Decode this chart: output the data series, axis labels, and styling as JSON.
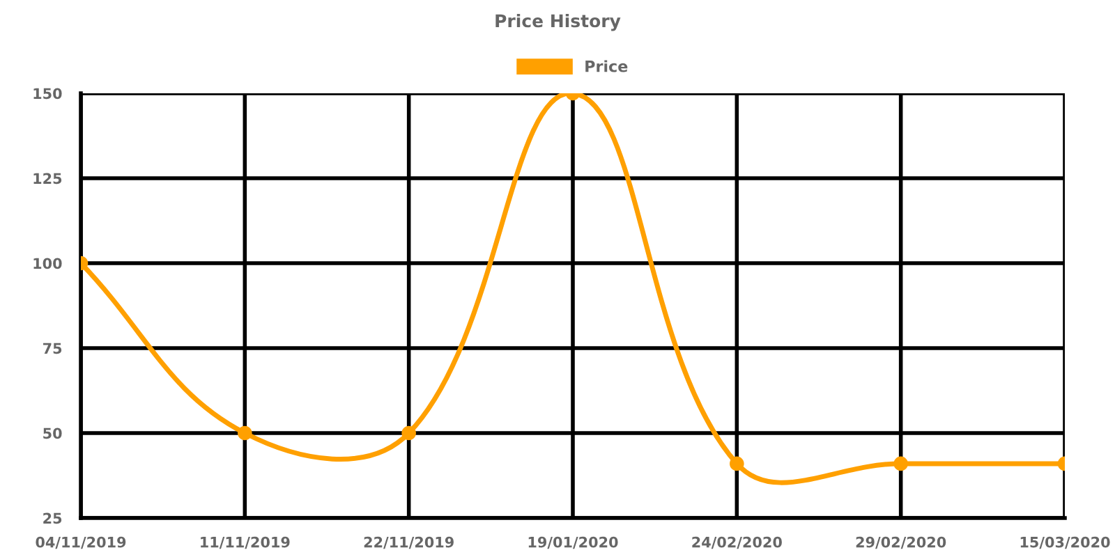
{
  "chart_data": {
    "type": "line",
    "title": "Price History",
    "categories": [
      "04/11/2019",
      "11/11/2019",
      "22/11/2019",
      "19/01/2020",
      "24/02/2020",
      "29/02/2020",
      "15/03/2020"
    ],
    "series": [
      {
        "name": "Price",
        "color": "#ffa000",
        "values": [
          100,
          50,
          50,
          150,
          41,
          41,
          41
        ]
      }
    ],
    "ylim": [
      25,
      150
    ],
    "yticks": [
      25,
      50,
      75,
      100,
      125,
      150
    ],
    "grid": true,
    "legend": "top",
    "marker": "circle",
    "line_style": "solid"
  }
}
